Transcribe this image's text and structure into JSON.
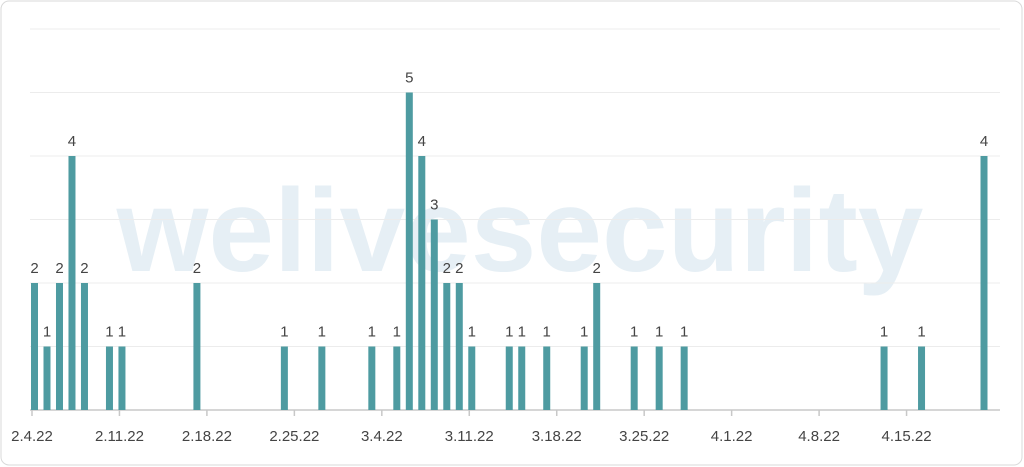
{
  "chart_data": {
    "type": "bar",
    "watermark": "welivesecurity",
    "x": [
      "2022-02-04",
      "2022-02-05",
      "2022-02-06",
      "2022-02-07",
      "2022-02-08",
      "2022-02-10",
      "2022-02-11",
      "2022-02-17",
      "2022-02-24",
      "2022-02-27",
      "2022-03-03",
      "2022-03-05",
      "2022-03-06",
      "2022-03-07",
      "2022-03-08",
      "2022-03-09",
      "2022-03-10",
      "2022-03-11",
      "2022-03-14",
      "2022-03-15",
      "2022-03-17",
      "2022-03-20",
      "2022-03-21",
      "2022-03-24",
      "2022-03-26",
      "2022-03-28",
      "2022-04-13",
      "2022-04-16",
      "2022-04-21"
    ],
    "values": [
      2,
      1,
      2,
      4,
      2,
      1,
      1,
      2,
      1,
      1,
      1,
      1,
      5,
      4,
      3,
      2,
      2,
      1,
      1,
      1,
      1,
      1,
      2,
      1,
      1,
      1,
      1,
      1,
      4
    ],
    "color": "#4e9ba1",
    "xlim": [
      "2022-02-04",
      "2022-04-22"
    ],
    "xticks": [
      {
        "value": "2022-02-04",
        "label": "2.4.22"
      },
      {
        "value": "2022-02-11",
        "label": "2.11.22"
      },
      {
        "value": "2022-02-18",
        "label": "2.18.22"
      },
      {
        "value": "2022-02-25",
        "label": "2.25.22"
      },
      {
        "value": "2022-03-04",
        "label": "3.4.22"
      },
      {
        "value": "2022-03-11",
        "label": "3.11.22"
      },
      {
        "value": "2022-03-18",
        "label": "3.18.22"
      },
      {
        "value": "2022-03-25",
        "label": "3.25.22"
      },
      {
        "value": "2022-04-01",
        "label": "4.1.22"
      },
      {
        "value": "2022-04-08",
        "label": "4.8.22"
      },
      {
        "value": "2022-04-15",
        "label": "4.15.22"
      }
    ],
    "ylim": [
      0,
      6
    ],
    "yticks": [
      0,
      1,
      2,
      3,
      4,
      5,
      6
    ],
    "show_ytick_labels": false,
    "grid": true
  }
}
